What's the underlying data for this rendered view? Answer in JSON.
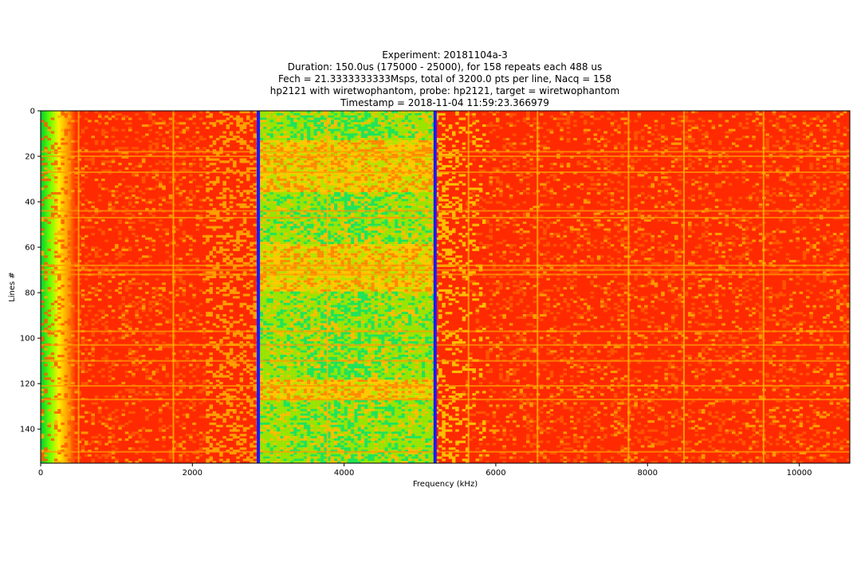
{
  "title_lines": [
    "Experiment: 20181104a-3",
    "Duration: 150.0us (175000 - 25000), for 158 repeats each 488 us",
    "Fech = 21.3333333333Msps, total of 3200.0 pts per line, Nacq = 158",
    "hp2121 with wiretwophantom, probe: hp2121, target = wiretwophantom",
    "Timestamp = 2018-11-04 11:59:23.366979"
  ],
  "chart_data": {
    "type": "heatmap",
    "xlabel": "Frequency (kHz)",
    "ylabel": "Lines #",
    "xlim": [
      0,
      10667
    ],
    "ylim": [
      155,
      0
    ],
    "x_ticks": [
      0,
      2000,
      4000,
      6000,
      8000,
      10000
    ],
    "y_ticks": [
      0,
      20,
      40,
      60,
      80,
      100,
      120,
      140
    ],
    "colormap": [
      "#ff2a00",
      "#ff8c00",
      "#ffd400",
      "#aaff00",
      "#00ff66"
    ],
    "vertical_markers": [
      {
        "x": 2870,
        "color": "#1a1aff"
      },
      {
        "x": 5200,
        "color": "#1a1aff"
      }
    ],
    "low_energy_band_khz": [
      2870,
      5200
    ],
    "strong_row_lines": [
      18,
      20,
      27,
      44,
      47,
      68,
      70,
      72,
      97,
      103,
      110,
      121,
      127,
      150
    ],
    "vertical_stripe_lines_khz": [
      500,
      1750,
      3780,
      5640,
      6550,
      7750,
      8480,
      9530
    ]
  }
}
